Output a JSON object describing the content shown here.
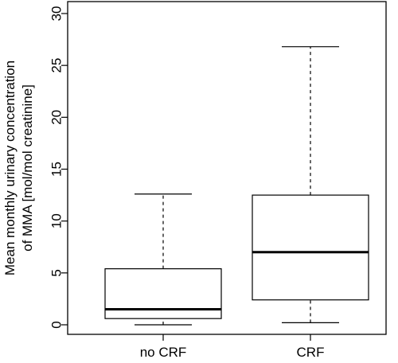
{
  "chart_data": {
    "type": "boxplot",
    "title": "",
    "xlabel": "",
    "ylabel_line1": "Mean monthly urinary concentration",
    "ylabel_line2": "of MMA [mol/mol creatinine]",
    "categories": [
      "no CRF",
      "CRF"
    ],
    "boxes": [
      {
        "label": "no CRF",
        "min": 0.0,
        "q1": 0.6,
        "median": 1.5,
        "q3": 5.4,
        "max": 12.6
      },
      {
        "label": "CRF",
        "min": 0.2,
        "q1": 2.4,
        "median": 7.0,
        "q3": 12.5,
        "max": 26.8
      }
    ],
    "ylim": [
      0,
      30
    ],
    "yticks": [
      0,
      5,
      10,
      15,
      20,
      25,
      30
    ],
    "grid": false,
    "legend": "none",
    "colors": {
      "box_fill": "#ffffff",
      "stroke": "#000000"
    }
  }
}
